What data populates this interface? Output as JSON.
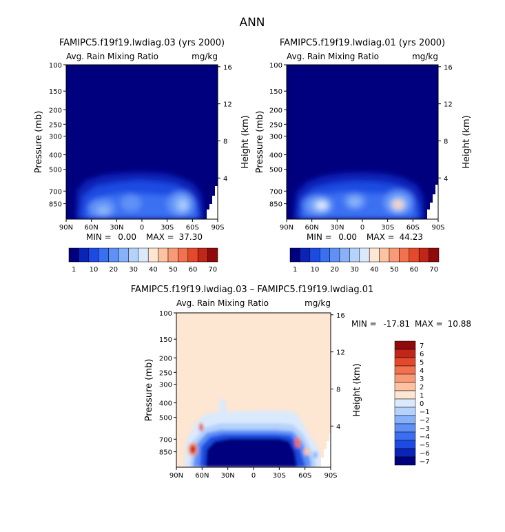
{
  "page_title": "ANN",
  "colors": {
    "sequential": [
      "#00007f",
      "#0a24b8",
      "#1d4be2",
      "#3a6ff2",
      "#5f90f6",
      "#87b2f9",
      "#b4d2fb",
      "#dbe9fd",
      "#fde6d2",
      "#fdc2a2",
      "#f99a76",
      "#f2714f",
      "#e34a2c",
      "#c22619",
      "#8f0a0a"
    ],
    "difference": [
      "#00007f",
      "#0a24b8",
      "#1d4be2",
      "#3a6ff2",
      "#5f90f6",
      "#87b2f9",
      "#b4d2fb",
      "#dbe9fd",
      "#fde6d2",
      "#fdc2a2",
      "#f99a76",
      "#f2714f",
      "#e34a2c",
      "#c22619",
      "#8f0a0a"
    ]
  },
  "chart_data": [
    {
      "id": "case1",
      "type": "contour",
      "title": "FAMIPC5.f19f19.lwdiag.03 (yrs 2000)",
      "variable": "Avg. Rain Mixing Ratio",
      "units": "mg/kg",
      "ylabel_left": "Pressure (mb)",
      "ylabel_right": "Height (km)",
      "x_ticks": [
        "90N",
        "60N",
        "30N",
        "0",
        "30S",
        "60S",
        "90S"
      ],
      "pressure_ticks": [
        "100",
        "150",
        "200",
        "250",
        "300",
        "400",
        "500",
        "700",
        "850"
      ],
      "height_ticks": [
        "16",
        "12",
        "8",
        "4"
      ],
      "min_label": "MIN =",
      "min_value": "0.00",
      "max_label": "MAX =",
      "max_value": "37.30",
      "colorbar_labels": [
        "1",
        "10",
        "20",
        "30",
        "40",
        "50",
        "60",
        "70"
      ]
    },
    {
      "id": "case2",
      "type": "contour",
      "title": "FAMIPC5.f19f19.lwdiag.01 (yrs 2000)",
      "variable": "Avg. Rain Mixing Ratio",
      "units": "mg/kg",
      "ylabel_left": "Pressure (mb)",
      "ylabel_right": "Height (km)",
      "x_ticks": [
        "90N",
        "60N",
        "30N",
        "0",
        "30S",
        "60S",
        "90S"
      ],
      "pressure_ticks": [
        "100",
        "150",
        "200",
        "250",
        "300",
        "400",
        "500",
        "700",
        "850"
      ],
      "height_ticks": [
        "16",
        "12",
        "8",
        "4"
      ],
      "min_label": "MIN =",
      "min_value": "0.00",
      "max_label": "MAX =",
      "max_value": "44.23",
      "colorbar_labels": [
        "1",
        "10",
        "20",
        "30",
        "40",
        "50",
        "60",
        "70"
      ]
    },
    {
      "id": "diff",
      "type": "contour",
      "title": "FAMIPC5.f19f19.lwdiag.03 – FAMIPC5.f19f19.lwdiag.01",
      "variable": "Avg. Rain Mixing Ratio",
      "units": "mg/kg",
      "ylabel_left": "Pressure (mb)",
      "ylabel_right": "Height (km)",
      "x_ticks": [
        "90N",
        "60N",
        "30N",
        "0",
        "30S",
        "60S",
        "90S"
      ],
      "pressure_ticks": [
        "100",
        "150",
        "200",
        "250",
        "300",
        "400",
        "500",
        "700",
        "850"
      ],
      "height_ticks": [
        "16",
        "12",
        "8",
        "4"
      ],
      "min_label": "MIN =",
      "min_value": "-17.81",
      "max_label": "MAX =",
      "max_value": "10.88",
      "colorbar_labels": [
        "7",
        "6",
        "5",
        "4",
        "3",
        "2",
        "1",
        "0",
        "−1",
        "−2",
        "−3",
        "−4",
        "−5",
        "−6",
        "−7"
      ]
    }
  ]
}
